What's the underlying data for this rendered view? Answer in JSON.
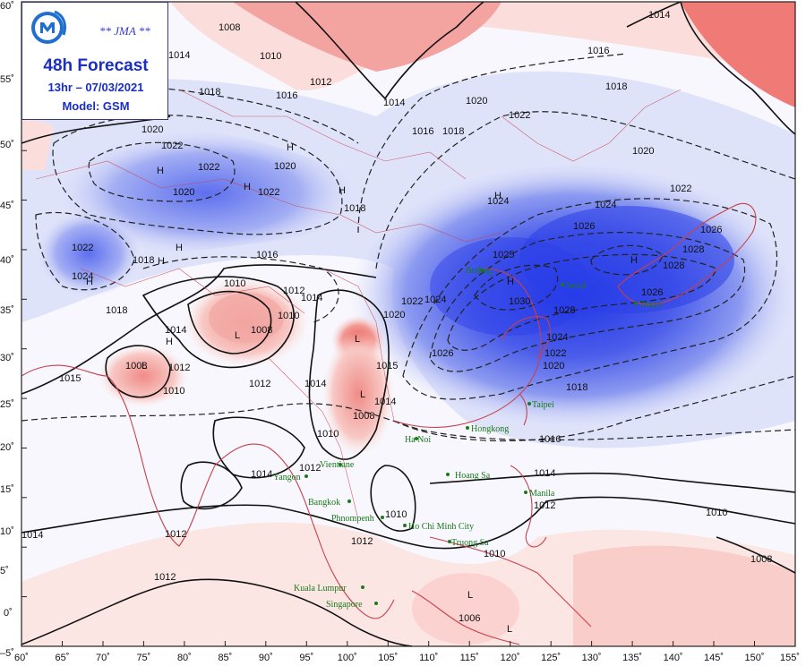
{
  "header": {
    "agency": "** JMA **",
    "title": "48h Forecast",
    "valid_time": "13hr – 07/03/2021",
    "model": "Model: GSM"
  },
  "axes": {
    "lon_labels": [
      "60˚",
      "65˚",
      "70˚",
      "75˚",
      "80˚",
      "85˚",
      "90˚",
      "95˚",
      "100˚",
      "105˚",
      "110˚",
      "115˚",
      "120˚",
      "125˚",
      "130˚",
      "135˚",
      "140˚",
      "145˚",
      "150˚",
      "155˚"
    ],
    "lat_labels": [
      "60˚",
      "55˚",
      "50˚",
      "45˚",
      "40˚",
      "35˚",
      "30˚",
      "25˚",
      "20˚",
      "15˚",
      "10˚",
      "5˚",
      "0˚",
      "–5˚"
    ]
  },
  "isobar_labels": [
    "1008",
    "1014",
    "1010",
    "1012",
    "1016",
    "1018",
    "1020",
    "1022",
    "1024",
    "1026",
    "1028",
    "1030",
    "1025",
    "1015",
    "1008",
    "1006"
  ],
  "pressure_centers": [
    "H",
    "L"
  ],
  "cities": [
    "Beijing",
    "Seoul",
    "Tokyo",
    "Taipei",
    "Hongkong",
    "Ha Noi",
    "Hoang Sa",
    "Manila",
    "Vientiane",
    "Yangon",
    "Bangkok",
    "Phnompenh",
    "Ho Chi Minh City",
    "Truong Sa",
    "Kuala Lumpur",
    "Singapore"
  ],
  "colors": {
    "high_dark": "#2a3ee6",
    "high_mid": "#7f8ff0",
    "high_light": "#e6e9fb",
    "low_light": "#fbe3e1",
    "low_mid": "#f4aeaa",
    "low_dark": "#ea5a55",
    "coast": "#c8404a",
    "title_blue": "#1a2ec4"
  }
}
